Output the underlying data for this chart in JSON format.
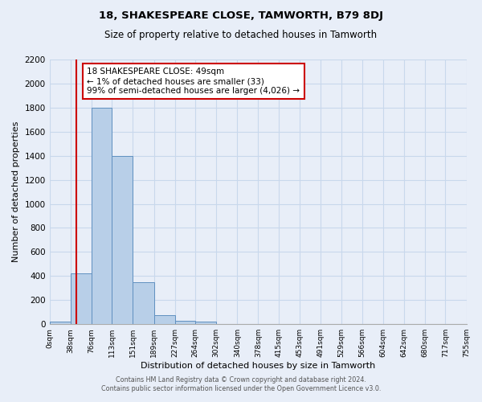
{
  "title": "18, SHAKESPEARE CLOSE, TAMWORTH, B79 8DJ",
  "subtitle": "Size of property relative to detached houses in Tamworth",
  "xlabel": "Distribution of detached houses by size in Tamworth",
  "ylabel": "Number of detached properties",
  "bin_edges": [
    0,
    38,
    76,
    113,
    151,
    189,
    227,
    264,
    302,
    340,
    378,
    415,
    453,
    491,
    529,
    566,
    604,
    642,
    680,
    717,
    755
  ],
  "bar_heights": [
    20,
    420,
    1800,
    1400,
    350,
    75,
    25,
    20,
    0,
    0,
    0,
    0,
    0,
    0,
    0,
    0,
    0,
    0,
    0,
    0
  ],
  "tick_labels": [
    "0sqm",
    "38sqm",
    "76sqm",
    "113sqm",
    "151sqm",
    "189sqm",
    "227sqm",
    "264sqm",
    "302sqm",
    "340sqm",
    "378sqm",
    "415sqm",
    "453sqm",
    "491sqm",
    "529sqm",
    "566sqm",
    "604sqm",
    "642sqm",
    "680sqm",
    "717sqm",
    "755sqm"
  ],
  "bar_color": "#b8cfe8",
  "bar_edge_color": "#6090c0",
  "grid_color": "#c8d8ec",
  "bg_color": "#e8eef8",
  "vline_x": 49,
  "vline_color": "#cc0000",
  "annotation_line1": "18 SHAKESPEARE CLOSE: 49sqm",
  "annotation_line2": "← 1% of detached houses are smaller (33)",
  "annotation_line3": "99% of semi-detached houses are larger (4,026) →",
  "annotation_box_color": "#ffffff",
  "annotation_box_edge": "#cc0000",
  "ylim": [
    0,
    2200
  ],
  "yticks": [
    0,
    200,
    400,
    600,
    800,
    1000,
    1200,
    1400,
    1600,
    1800,
    2000,
    2200
  ],
  "footer_line1": "Contains HM Land Registry data © Crown copyright and database right 2024.",
  "footer_line2": "Contains public sector information licensed under the Open Government Licence v3.0."
}
